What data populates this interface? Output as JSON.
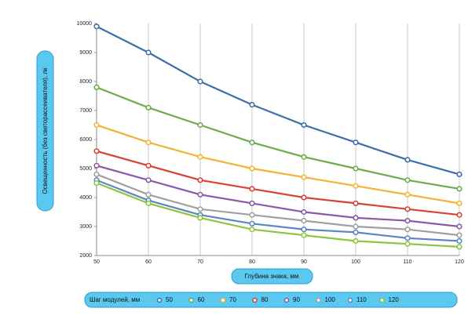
{
  "chart_data": {
    "type": "line",
    "ylabel": "Освещенность (без светорассеивателя), лк",
    "xlabel": "Глубина знака, мм",
    "legend_title": "Шаг модулей, мм",
    "x": [
      50,
      60,
      70,
      80,
      90,
      100,
      110,
      120
    ],
    "xlim": [
      50,
      120
    ],
    "xticks": [
      50,
      60,
      70,
      80,
      90,
      100,
      110,
      120
    ],
    "ylim": [
      2000,
      10000
    ],
    "yticks": [
      2000,
      3000,
      4000,
      5000,
      6000,
      7000,
      8000,
      9000,
      10000
    ],
    "grid": "x",
    "legend": "bottom",
    "series": [
      {
        "name": "50",
        "color": "#3d6fa8",
        "values": [
          9900,
          9000,
          8000,
          7200,
          6500,
          5900,
          5300,
          4800
        ]
      },
      {
        "name": "60",
        "color": "#6aad4e",
        "values": [
          7800,
          7100,
          6500,
          5900,
          5400,
          5000,
          4600,
          4300
        ]
      },
      {
        "name": "70",
        "color": "#f5b234",
        "values": [
          6500,
          5900,
          5400,
          5000,
          4700,
          4400,
          4100,
          3800
        ]
      },
      {
        "name": "80",
        "color": "#d94133",
        "values": [
          5600,
          5100,
          4600,
          4300,
          4000,
          3800,
          3600,
          3400
        ]
      },
      {
        "name": "90",
        "color": "#8a5aa8",
        "values": [
          5100,
          4600,
          4100,
          3800,
          3500,
          3300,
          3200,
          3000
        ]
      },
      {
        "name": "100",
        "color": "#a0a0a0",
        "values": [
          4800,
          4100,
          3600,
          3400,
          3200,
          3000,
          2900,
          2700
        ]
      },
      {
        "name": "110",
        "color": "#5b86c0",
        "values": [
          4600,
          3900,
          3400,
          3100,
          2900,
          2800,
          2600,
          2500
        ]
      },
      {
        "name": "120",
        "color": "#8cc63f",
        "values": [
          4500,
          3800,
          3300,
          2900,
          2700,
          2500,
          2400,
          2300
        ]
      }
    ]
  }
}
